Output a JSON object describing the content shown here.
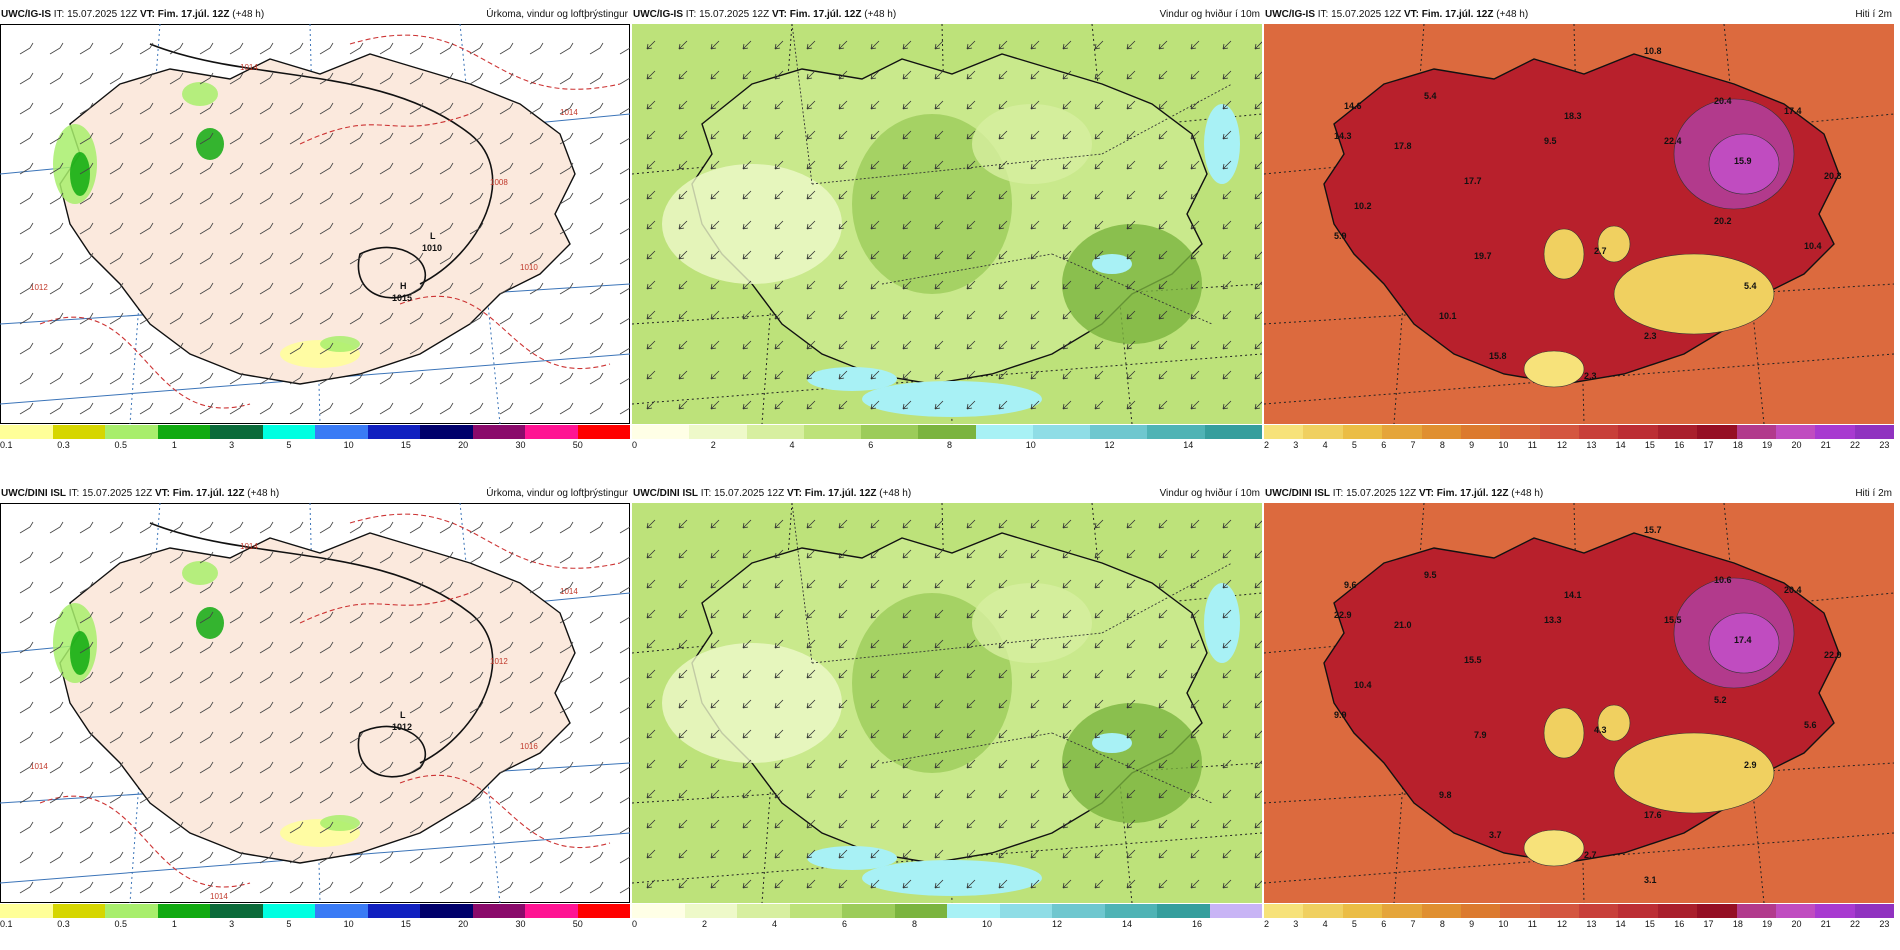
{
  "panels": [
    {
      "id": "ig-precip",
      "model": "UWC/IG-IS",
      "it_label": "IT:",
      "it_value": "15.07.2025 12Z",
      "vt_label": "VT:",
      "vt_value": "Fim. 17.júl. 12Z",
      "lead": "(+48 h)",
      "field": "Úrkoma, vindur og loftþrýstingur",
      "kind": "precip",
      "colorbar": {
        "colors": [
          "#ffff99",
          "#d6d600",
          "#a8ee6c",
          "#11aa11",
          "#0b6b3a",
          "#00ffe1",
          "#3a7bf5",
          "#1020c0",
          "#00006b",
          "#8a0a6b",
          "#ff1493",
          "#ff0000"
        ],
        "ticks": [
          "0.1",
          "0.3",
          "0.5",
          "1",
          "3",
          "5",
          "10",
          "15",
          "20",
          "30",
          "50"
        ]
      },
      "pressure_labels": [
        {
          "text": "L",
          "sub": "1010"
        },
        {
          "text": "H",
          "sub": "1015"
        }
      ],
      "isobar_values": [
        "1012",
        "1014",
        "1014",
        "1008",
        "1010"
      ]
    },
    {
      "id": "ig-wind",
      "model": "UWC/IG-IS",
      "it_label": "IT:",
      "it_value": "15.07.2025 12Z",
      "vt_label": "VT:",
      "vt_value": "Fim. 17.júl. 12Z",
      "lead": "(+48 h)",
      "field": "Vindur og hviður í 10m",
      "kind": "wind",
      "colorbar": {
        "colors": [
          "#ffffe6",
          "#eef9c9",
          "#d7efa0",
          "#bde27a",
          "#9ccc5a",
          "#7bb43f",
          "#a8f1f5",
          "#8fdde6",
          "#6fc7cf",
          "#4fb3b5",
          "#359e9d"
        ],
        "ticks": [
          "0",
          "2",
          "4",
          "6",
          "8",
          "10",
          "12",
          "14"
        ]
      }
    },
    {
      "id": "ig-temp",
      "model": "UWC/IG-IS",
      "it_label": "IT:",
      "it_value": "15.07.2025 12Z",
      "vt_label": "VT:",
      "vt_value": "Fim. 17.júl. 12Z",
      "lead": "(+48 h)",
      "field": "Hiti í 2m",
      "kind": "temp",
      "colorbar": {
        "colors": [
          "#f7e27a",
          "#f0d060",
          "#ebbd45",
          "#e5a53a",
          "#e08f30",
          "#dc7a2e",
          "#d9663a",
          "#d45640",
          "#c8403a",
          "#bc2e34",
          "#a91f2c",
          "#950f24",
          "#b23a8c",
          "#c04cc0",
          "#a83ad0",
          "#9032c0"
        ],
        "ticks": [
          "2",
          "3",
          "4",
          "5",
          "6",
          "7",
          "8",
          "9",
          "10",
          "11",
          "12",
          "13",
          "14",
          "15",
          "16",
          "17",
          "18",
          "19",
          "20",
          "21",
          "22",
          "23"
        ]
      },
      "temp_labels": [
        "10.8",
        "14.6",
        "5.4",
        "20.4",
        "17.4",
        "14.3",
        "17.8",
        "18.3",
        "9.5",
        "22.4",
        "15.9",
        "20.3",
        "17.7",
        "10.2",
        "20.2",
        "5.9",
        "19.7",
        "2.7",
        "10.4",
        "5.4",
        "10.1",
        "2.3",
        "15.8",
        "2.3"
      ]
    },
    {
      "id": "dini-precip",
      "model": "UWC/DINI ISL",
      "it_label": "IT:",
      "it_value": "15.07.2025 12Z",
      "vt_label": "VT:",
      "vt_value": "Fim. 17.júl. 12Z",
      "lead": "(+48 h)",
      "field": "Úrkoma, vindur og loftþrýstingur",
      "kind": "precip",
      "colorbar": {
        "colors": [
          "#ffff99",
          "#d6d600",
          "#a8ee6c",
          "#11aa11",
          "#0b6b3a",
          "#00ffe1",
          "#3a7bf5",
          "#1020c0",
          "#00006b",
          "#8a0a6b",
          "#ff1493",
          "#ff0000"
        ],
        "ticks": [
          "0.1",
          "0.3",
          "0.5",
          "1",
          "3",
          "5",
          "10",
          "15",
          "20",
          "30",
          "50"
        ]
      },
      "pressure_labels": [
        {
          "text": "L",
          "sub": "1012"
        }
      ],
      "isobar_values": [
        "1014",
        "1014",
        "1014",
        "1012",
        "1016",
        "1014"
      ]
    },
    {
      "id": "dini-wind",
      "model": "UWC/DINI ISL",
      "it_label": "IT:",
      "it_value": "15.07.2025 12Z",
      "vt_label": "VT:",
      "vt_value": "Fim. 17.júl. 12Z",
      "lead": "(+48 h)",
      "field": "Vindur og hviður í 10m",
      "kind": "wind",
      "colorbar": {
        "colors": [
          "#ffffe6",
          "#eef9c9",
          "#d7efa0",
          "#bde27a",
          "#9ccc5a",
          "#7bb43f",
          "#a8f1f5",
          "#8fdde6",
          "#6fc7cf",
          "#4fb3b5",
          "#359e9d",
          "#c8b4f5"
        ],
        "ticks": [
          "0",
          "2",
          "4",
          "6",
          "8",
          "10",
          "12",
          "14",
          "16"
        ]
      }
    },
    {
      "id": "dini-temp",
      "model": "UWC/DINI ISL",
      "it_label": "IT:",
      "it_value": "15.07.2025 12Z",
      "vt_label": "VT:",
      "vt_value": "Fim. 17.júl. 12Z",
      "lead": "(+48 h)",
      "field": "Hiti í 2m",
      "kind": "temp",
      "colorbar": {
        "colors": [
          "#f7e27a",
          "#f0d060",
          "#ebbd45",
          "#e5a53a",
          "#e08f30",
          "#dc7a2e",
          "#d9663a",
          "#d45640",
          "#c8403a",
          "#bc2e34",
          "#a91f2c",
          "#950f24",
          "#b23a8c",
          "#c04cc0",
          "#a83ad0",
          "#9032c0"
        ],
        "ticks": [
          "2",
          "3",
          "4",
          "5",
          "6",
          "7",
          "8",
          "9",
          "10",
          "11",
          "12",
          "13",
          "14",
          "15",
          "16",
          "17",
          "18",
          "19",
          "20",
          "21",
          "22",
          "23"
        ]
      },
      "temp_labels": [
        "15.7",
        "9.6",
        "9.5",
        "10.6",
        "20.4",
        "22.9",
        "21.0",
        "14.1",
        "13.3",
        "15.5",
        "17.4",
        "22.9",
        "15.5",
        "10.4",
        "5.2",
        "9.9",
        "7.9",
        "4.3",
        "5.6",
        "2.9",
        "9.8",
        "17.6",
        "3.7",
        "2.7",
        "3.1"
      ]
    }
  ]
}
